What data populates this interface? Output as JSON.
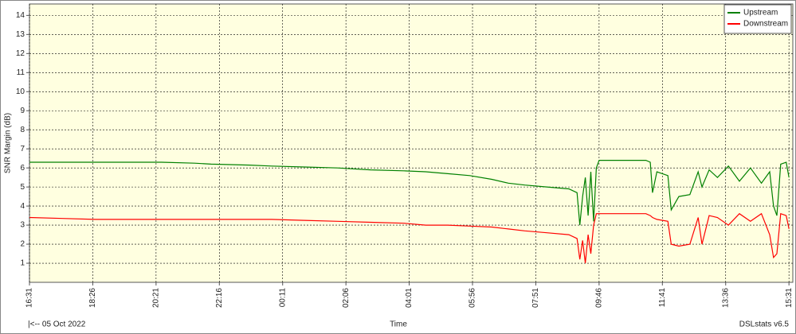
{
  "chart_data": {
    "type": "line",
    "ylabel": "SNR Margin (dB)",
    "xlabel": "Time",
    "date_note": "|<-- 05 Oct 2022",
    "footer": "DSLstats v6.5",
    "x": [
      0,
      60,
      120,
      180,
      240,
      300,
      330,
      400,
      440,
      500,
      560,
      620,
      680,
      720,
      760,
      800,
      840,
      870,
      900,
      940,
      980,
      995,
      1000,
      1005,
      1010,
      1015,
      1020,
      1025,
      1030,
      1035,
      1045,
      1080,
      1120,
      1128,
      1132,
      1140,
      1160,
      1166,
      1180,
      1200,
      1215,
      1222,
      1235,
      1250,
      1270,
      1290,
      1310,
      1330,
      1345,
      1352,
      1358,
      1365,
      1375,
      1380
    ],
    "series": [
      {
        "name": "Upstream",
        "color": "#008000",
        "values": [
          6.3,
          6.3,
          6.3,
          6.3,
          6.3,
          6.25,
          6.2,
          6.15,
          6.1,
          6.05,
          6.0,
          5.9,
          5.85,
          5.8,
          5.7,
          5.6,
          5.4,
          5.2,
          5.1,
          5.0,
          4.9,
          4.7,
          3.0,
          4.5,
          5.5,
          3.5,
          5.8,
          3.2,
          6.0,
          6.4,
          6.4,
          6.4,
          6.4,
          6.3,
          4.7,
          5.8,
          5.6,
          3.8,
          4.5,
          4.6,
          5.8,
          5.0,
          5.9,
          5.5,
          6.1,
          5.3,
          6.0,
          5.2,
          5.8,
          4.0,
          3.5,
          6.2,
          6.3,
          5.5
        ]
      },
      {
        "name": "Downstream",
        "color": "#ff0000",
        "values": [
          3.4,
          3.35,
          3.3,
          3.3,
          3.3,
          3.3,
          3.3,
          3.3,
          3.3,
          3.25,
          3.2,
          3.15,
          3.1,
          3.0,
          3.0,
          2.95,
          2.9,
          2.8,
          2.7,
          2.6,
          2.5,
          2.3,
          1.2,
          2.2,
          1.0,
          2.5,
          1.5,
          3.0,
          3.6,
          3.6,
          3.6,
          3.6,
          3.6,
          3.5,
          3.4,
          3.3,
          3.2,
          2.0,
          1.9,
          2.0,
          3.4,
          2.0,
          3.5,
          3.4,
          3.0,
          3.6,
          3.2,
          3.6,
          2.5,
          1.3,
          1.5,
          3.6,
          3.5,
          2.8
        ]
      }
    ],
    "xlim": [
      0,
      1387
    ],
    "xticks": [
      {
        "value": 0,
        "label": "16:31"
      },
      {
        "value": 115,
        "label": "18:26"
      },
      {
        "value": 230,
        "label": "20:21"
      },
      {
        "value": 345,
        "label": "22:16"
      },
      {
        "value": 460,
        "label": "00:11"
      },
      {
        "value": 575,
        "label": "02:06"
      },
      {
        "value": 690,
        "label": "04:01"
      },
      {
        "value": 805,
        "label": "05:56"
      },
      {
        "value": 920,
        "label": "07:51"
      },
      {
        "value": 1035,
        "label": "09:46"
      },
      {
        "value": 1150,
        "label": "11:41"
      },
      {
        "value": 1265,
        "label": "13:36"
      },
      {
        "value": 1380,
        "label": "15:31"
      }
    ],
    "ylim": [
      0,
      14.6
    ],
    "yticks": [
      1,
      2,
      3,
      4,
      5,
      6,
      7,
      8,
      9,
      10,
      11,
      12,
      13,
      14
    ],
    "grid": true,
    "legend": "upper right"
  }
}
